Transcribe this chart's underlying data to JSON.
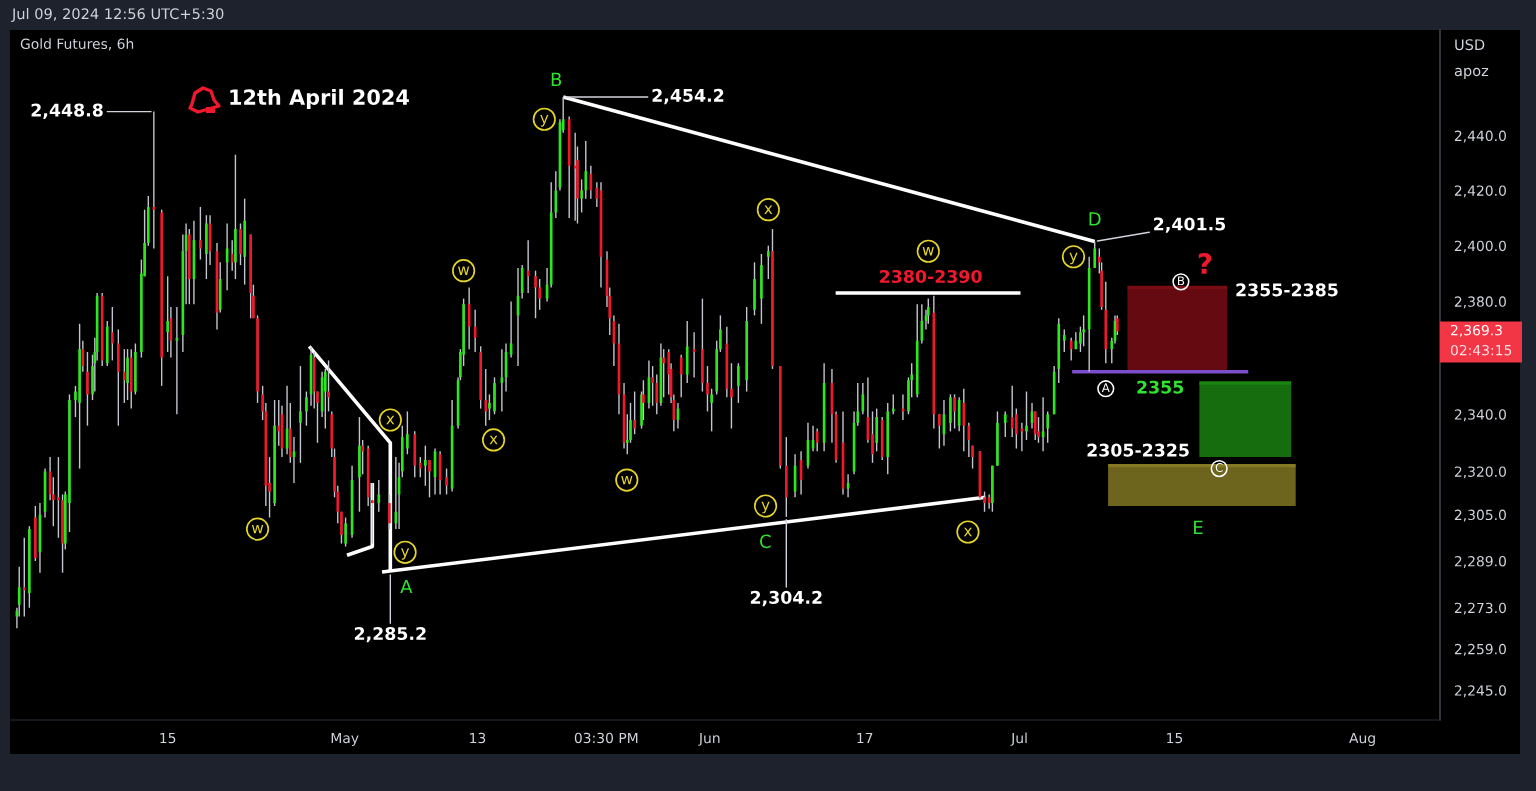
{
  "chart_data": {
    "type": "candlestick",
    "title": "Gold Futures, 6h",
    "x": [
      "2024-04-01T09:00",
      "2024-04-01T14:00",
      "2024-04-02T01:00",
      "2024-04-02T12:00",
      "2024-04-03T01:00",
      "2024-04-03T11:00",
      "2024-04-03T22:00",
      "2024-04-04T09:00",
      "2024-04-04T16:00",
      "2024-04-05T03:00",
      "2024-04-05T12:00",
      "2024-04-05T18:00",
      "2024-04-06T03:00",
      "2024-04-06T16:00",
      "2024-04-07T01:00",
      "2024-04-07T08:00",
      "2024-04-07T18:00",
      "2024-04-08T05:00",
      "2024-04-08T10:00",
      "2024-04-08T15:00",
      "2024-04-09T02:00",
      "2024-04-09T13:00",
      "2024-04-10T00:00",
      "2024-04-10T13:00",
      "2024-04-11T02:00",
      "2024-04-11T09:00",
      "2024-04-11T17:00",
      "2024-04-12T02:00",
      "2024-04-12T15:00",
      "2024-04-12T22:00",
      "2024-04-13T06:00",
      "2024-04-13T18:00",
      "2024-04-14T11:00",
      "2024-04-15T00:00",
      "2024-04-15T07:00",
      "2024-04-15T20:00",
      "2024-04-16T09:00",
      "2024-04-16T16:00",
      "2024-04-16T23:00",
      "2024-04-17T09:00",
      "2024-04-17T23:00",
      "2024-04-18T12:00",
      "2024-04-18T20:00",
      "2024-04-19T11:00",
      "2024-04-19T18:00",
      "2024-04-20T09:00",
      "2024-04-20T20:00",
      "2024-04-21T03:00",
      "2024-04-21T14:00",
      "2024-04-21T23:00",
      "2024-04-22T12:00",
      "2024-04-22T18:00",
      "2024-04-23T03:00",
      "2024-04-23T14:00",
      "2024-04-23T21:00",
      "2024-04-24T05:00",
      "2024-04-24T16:00",
      "2024-04-25T01:00",
      "2024-04-25T08:00",
      "2024-04-25T19:00",
      "2024-04-26T02:00",
      "2024-04-26T10:00",
      "2024-04-27T00:00",
      "2024-04-27T13:00",
      "2024-04-27T23:00",
      "2024-04-28T06:00",
      "2024-04-28T13:00",
      "2024-04-28T23:00",
      "2024-04-29T06:00",
      "2024-04-29T13:00",
      "2024-04-29T20:00",
      "2024-04-30T02:00",
      "2024-04-30T09:00",
      "2024-04-30T17:00",
      "2024-05-01T02:00",
      "2024-05-01T16:00",
      "2024-05-02T08:00",
      "2024-05-02T15:00",
      "2024-05-03T03:00",
      "2024-05-03T12:00",
      "2024-05-04T02:00",
      "2024-05-05T01:00",
      "2024-05-05T15:00",
      "2024-05-05T22:00",
      "2024-05-06T05:00",
      "2024-05-06T16:00",
      "2024-05-07T08:00",
      "2024-05-07T20:00",
      "2024-05-08T07:00",
      "2024-05-08T16:00",
      "2024-05-09T04:00",
      "2024-05-09T15:00",
      "2024-05-10T05:00",
      "2024-05-10T17:00",
      "2024-05-11T06:00",
      "2024-05-11T11:00",
      "2024-05-11T18:00",
      "2024-05-12T06:00",
      "2024-05-12T19:00",
      "2024-05-13T07:00",
      "2024-05-13T18:00",
      "2024-05-14T02:00",
      "2024-05-14T13:00",
      "2024-05-15T05:00",
      "2024-05-15T14:00",
      "2024-05-16T01:00",
      "2024-05-16T16:00",
      "2024-05-17T01:00",
      "2024-05-17T14:00",
      "2024-05-18T06:00",
      "2024-05-18T15:00",
      "2024-05-19T07:00",
      "2024-05-19T16:00",
      "2024-05-20T02:00",
      "2024-05-20T11:00",
      "2024-05-20T18:00",
      "2024-05-21T07:00",
      "2024-05-21T20:00",
      "2024-05-22T01:00",
      "2024-05-22T10:00",
      "2024-05-22T19:00",
      "2024-05-23T06:00",
      "2024-05-23T19:00",
      "2024-05-24T04:00",
      "2024-05-24T17:00",
      "2024-05-24T23:00",
      "2024-05-25T08:00",
      "2024-05-25T19:00",
      "2024-05-26T06:00",
      "2024-05-26T13:00",
      "2024-05-26T20:00",
      "2024-05-27T05:00",
      "2024-05-27T20:00",
      "2024-05-28T00:00",
      "2024-05-28T12:00",
      "2024-05-28T20:00",
      "2024-05-29T05:00",
      "2024-05-29T14:00",
      "2024-05-29T20:00",
      "2024-05-30T07:00",
      "2024-05-30T12:00",
      "2024-05-30T18:00",
      "2024-05-31T03:00",
      "2024-05-31T10:00",
      "2024-05-31T23:00",
      "2024-06-01T14:00",
      "2024-06-02T08:00",
      "2024-06-02T19:00",
      "2024-06-03T04:00",
      "2024-06-03T15:00",
      "2024-06-03T23:00",
      "2024-06-04T13:00",
      "2024-06-04T23:00",
      "2024-06-05T14:00",
      "2024-06-06T08:00",
      "2024-06-07T01:00",
      "2024-06-07T16:00",
      "2024-06-08T07:00",
      "2024-06-08T16:00",
      "2024-06-09T09:00",
      "2024-06-09T22:00",
      "2024-06-10T17:00",
      "2024-06-11T06:00",
      "2024-06-11T21:00",
      "2024-06-12T08:00",
      "2024-06-12T17:00",
      "2024-06-13T08:00",
      "2024-06-14T01:00",
      "2024-06-14T10:00",
      "2024-06-15T01:00",
      "2024-06-15T12:00",
      "2024-06-16T01:00",
      "2024-06-16T09:00",
      "2024-06-16T20:00",
      "2024-06-17T07:00",
      "2024-06-17T17:00",
      "2024-06-18T02:00",
      "2024-06-18T14:00",
      "2024-06-19T02:00",
      "2024-06-19T14:00",
      "2024-06-20T11:00",
      "2024-06-20T23:00",
      "2024-06-21T06:00",
      "2024-06-21T18:00",
      "2024-06-22T04:00",
      "2024-06-22T13:00",
      "2024-06-22T18:00",
      "2024-06-23T06:00",
      "2024-06-23T18:00",
      "2024-06-24T04:00",
      "2024-06-24T18:00",
      "2024-06-25T03:00",
      "2024-06-25T13:00",
      "2024-06-25T23:00",
      "2024-06-26T10:00",
      "2024-06-26T18:00",
      "2024-06-27T10:00",
      "2024-06-27T20:00",
      "2024-06-28T06:00",
      "2024-06-28T13:00",
      "2024-06-29T00:00",
      "2024-06-29T17:00",
      "2024-06-30T08:00",
      "2024-06-30T17:00",
      "2024-07-01T05:00",
      "2024-07-01T15:00",
      "2024-07-02T03:00",
      "2024-07-02T10:00",
      "2024-07-02T17:00",
      "2024-07-03T03:00",
      "2024-07-03T13:00",
      "2024-07-04T03:00",
      "2024-07-04T13:00",
      "2024-07-05T01:00",
      "2024-07-05T16:00",
      "2024-07-06T02:00",
      "2024-07-06T12:00",
      "2024-07-06T19:00",
      "2024-07-07T07:00",
      "2024-07-07T19:00",
      "2024-07-08T05:00",
      "2024-07-08T10:00",
      "2024-07-08T19:00",
      "2024-07-09T08:00",
      "2024-07-09T15:00",
      "2024-07-09T20:00"
    ],
    "ohlc": [
      [
        2270,
        2273,
        2266,
        2272
      ],
      [
        2274,
        2287,
        2270,
        2280
      ],
      [
        2280,
        2297,
        2270,
        2279
      ],
      [
        2278,
        2301,
        2273,
        2300
      ],
      [
        2304,
        2308,
        2289,
        2290
      ],
      [
        2292,
        2309,
        2285,
        2305
      ],
      [
        2306,
        2321,
        2304,
        2320
      ],
      [
        2320,
        2325,
        2310,
        2312
      ],
      [
        2312,
        2318,
        2301,
        2310
      ],
      [
        2311,
        2325,
        2297,
        2310
      ],
      [
        2310,
        2312,
        2285,
        2295
      ],
      [
        2295,
        2313,
        2293,
        2312
      ],
      [
        2309,
        2347,
        2299,
        2345
      ],
      [
        2345,
        2350,
        2339,
        2348
      ],
      [
        2344,
        2372,
        2321,
        2363
      ],
      [
        2363,
        2366,
        2355,
        2357
      ],
      [
        2355,
        2362,
        2336,
        2347
      ],
      [
        2347,
        2361,
        2345,
        2357
      ],
      [
        2358,
        2367,
        2348,
        2362
      ],
      [
        2362,
        2383,
        2359,
        2382
      ],
      [
        2382,
        2383,
        2357,
        2359
      ],
      [
        2358,
        2373,
        2357,
        2371
      ],
      [
        2369,
        2378,
        2359,
        2365
      ],
      [
        2365,
        2370,
        2336,
        2355
      ],
      [
        2355,
        2363,
        2344,
        2352
      ],
      [
        2351,
        2363,
        2345,
        2360
      ],
      [
        2360,
        2363,
        2342,
        2348
      ],
      [
        2348,
        2365,
        2347,
        2362
      ],
      [
        2362,
        2395,
        2360,
        2390
      ],
      [
        2389,
        2413,
        2389,
        2401
      ],
      [
        2401,
        2418,
        2400,
        2414
      ],
      [
        2414,
        2448.8,
        2399,
        2413
      ],
      [
        2412,
        2413,
        2350,
        2360
      ],
      [
        2369,
        2389,
        2362,
        2373
      ],
      [
        2374,
        2378,
        2360,
        2366
      ],
      [
        2366,
        2378,
        2340,
        2367
      ],
      [
        2368,
        2404,
        2362,
        2398
      ],
      [
        2398,
        2408,
        2379,
        2404
      ],
      [
        2404,
        2406,
        2379,
        2388
      ],
      [
        2388,
        2409,
        2379,
        2402
      ],
      [
        2402,
        2414,
        2395,
        2399
      ],
      [
        2397,
        2411,
        2388,
        2408
      ],
      [
        2408,
        2411,
        2393,
        2398
      ],
      [
        2398,
        2401,
        2370,
        2376
      ],
      [
        2377,
        2394,
        2376,
        2388
      ],
      [
        2394,
        2408,
        2384,
        2399
      ],
      [
        2397,
        2402,
        2391,
        2394
      ],
      [
        2394,
        2433,
        2388,
        2406
      ],
      [
        2406,
        2408,
        2393,
        2397
      ],
      [
        2396,
        2417,
        2386,
        2409
      ],
      [
        2404,
        2404,
        2374,
        2383
      ],
      [
        2382,
        2386,
        2374,
        2374
      ],
      [
        2374,
        2375,
        2344,
        2348
      ],
      [
        2347,
        2350,
        2338,
        2341
      ],
      [
        2341,
        2344,
        2308,
        2315
      ],
      [
        2316,
        2325,
        2304,
        2313
      ],
      [
        2309,
        2345,
        2308,
        2336
      ],
      [
        2336,
        2345,
        2329,
        2334
      ],
      [
        2340,
        2343,
        2325,
        2328
      ],
      [
        2328,
        2350,
        2326,
        2335
      ],
      [
        2335,
        2344,
        2323,
        2325
      ],
      [
        2325,
        2332,
        2316,
        2327
      ],
      [
        2337,
        2357,
        2323,
        2341
      ],
      [
        2341,
        2348,
        2336,
        2346
      ],
      [
        2347,
        2364,
        2343,
        2361
      ],
      [
        2360,
        2362,
        2342,
        2348
      ],
      [
        2348,
        2348,
        2330,
        2344
      ],
      [
        2341,
        2355,
        2339,
        2353
      ],
      [
        2348,
        2356,
        2335,
        2355
      ],
      [
        2348,
        2359,
        2341,
        2346
      ],
      [
        2340,
        2341,
        2325,
        2328
      ],
      [
        2325,
        2328,
        2311,
        2313
      ],
      [
        2313,
        2315,
        2302,
        2306
      ],
      [
        2306,
        2306,
        2295,
        2298
      ],
      [
        2295,
        2304,
        2294,
        2302
      ],
      [
        2298,
        2322,
        2297,
        2317
      ],
      [
        2318,
        2339,
        2306,
        2329
      ],
      [
        2329,
        2331,
        2319,
        2327
      ],
      [
        2328,
        2329,
        2308,
        2311
      ],
      [
        2310,
        2316,
        2295,
        2309
      ],
      [
        2309,
        2317,
        2306,
        2312
      ],
      [
        2309,
        2312,
        2300,
        2302
      ],
      [
        2302,
        2325,
        2300,
        2306
      ],
      [
        2312,
        2323,
        2300,
        2318
      ],
      [
        2320,
        2336,
        2318,
        2332
      ],
      [
        2328,
        2341,
        2326,
        2333
      ],
      [
        2333,
        2334,
        2318,
        2322
      ],
      [
        2323,
        2325,
        2318,
        2321
      ],
      [
        2322,
        2329,
        2315,
        2324
      ],
      [
        2324,
        2324,
        2311,
        2320
      ],
      [
        2318,
        2328,
        2312,
        2327
      ],
      [
        2326,
        2327,
        2312,
        2317
      ],
      [
        2318,
        2321,
        2312,
        2315
      ],
      [
        2314,
        2345,
        2313,
        2336
      ],
      [
        2336,
        2353,
        2335,
        2352
      ],
      [
        2353,
        2363,
        2352,
        2362
      ],
      [
        2361,
        2381,
        2357,
        2379
      ],
      [
        2379,
        2385,
        2363,
        2371
      ],
      [
        2371,
        2377,
        2362,
        2367
      ],
      [
        2362,
        2364,
        2342,
        2345
      ],
      [
        2345,
        2356,
        2336,
        2341
      ],
      [
        2342,
        2347,
        2338,
        2344
      ],
      [
        2341,
        2353,
        2340,
        2351
      ],
      [
        2351,
        2363,
        2341,
        2353
      ],
      [
        2353,
        2365,
        2348,
        2362
      ],
      [
        2361,
        2380,
        2360,
        2365
      ],
      [
        2375,
        2392,
        2357,
        2382
      ],
      [
        2383,
        2393,
        2381,
        2392
      ],
      [
        2391,
        2402,
        2383,
        2389
      ],
      [
        2389,
        2391,
        2374,
        2385
      ],
      [
        2385,
        2388,
        2377,
        2381
      ],
      [
        2381,
        2392,
        2380,
        2386
      ],
      [
        2386,
        2423,
        2385,
        2412
      ],
      [
        2412,
        2427,
        2410,
        2420
      ],
      [
        2421,
        2446,
        2420,
        2445
      ],
      [
        2442,
        2454.2,
        2441,
        2446
      ],
      [
        2446,
        2447,
        2410,
        2429
      ],
      [
        2429,
        2441,
        2409,
        2428
      ],
      [
        2431,
        2436,
        2408,
        2417
      ],
      [
        2417,
        2424,
        2412,
        2420
      ],
      [
        2420,
        2438,
        2417,
        2427
      ],
      [
        2426,
        2429,
        2417,
        2420
      ],
      [
        2421,
        2423,
        2414,
        2417
      ],
      [
        2420,
        2423,
        2385,
        2396
      ],
      [
        2395,
        2398,
        2378,
        2382
      ],
      [
        2382,
        2385,
        2368,
        2374
      ],
      [
        2373,
        2375,
        2357,
        2365
      ],
      [
        2365,
        2372,
        2340,
        2347
      ],
      [
        2347,
        2351,
        2328,
        2330
      ],
      [
        2330,
        2340,
        2326,
        2331
      ],
      [
        2331,
        2344,
        2330,
        2338
      ],
      [
        2338,
        2348,
        2333,
        2335
      ],
      [
        2336,
        2348,
        2335,
        2347
      ],
      [
        2347,
        2352,
        2338,
        2344
      ],
      [
        2344,
        2359,
        2342,
        2353
      ],
      [
        2353,
        2357,
        2343,
        2351
      ],
      [
        2351,
        2354,
        2340,
        2344
      ],
      [
        2344,
        2365,
        2343,
        2360
      ],
      [
        2360,
        2363,
        2346,
        2358
      ],
      [
        2362,
        2363,
        2347,
        2354
      ],
      [
        2356,
        2358,
        2344,
        2346
      ],
      [
        2345,
        2347,
        2334,
        2338
      ],
      [
        2338,
        2344,
        2335,
        2342
      ],
      [
        2360,
        2361,
        2346,
        2354
      ],
      [
        2354,
        2373,
        2351,
        2364
      ],
      [
        2363,
        2369,
        2353,
        2362
      ],
      [
        2363,
        2381,
        2348,
        2351
      ],
      [
        2351,
        2357,
        2341,
        2347
      ],
      [
        2344,
        2349,
        2334,
        2347
      ],
      [
        2348,
        2366,
        2347,
        2363
      ],
      [
        2363,
        2375,
        2362,
        2370
      ],
      [
        2365,
        2371,
        2346,
        2349
      ],
      [
        2349,
        2358,
        2335,
        2346
      ],
      [
        2350,
        2358,
        2344,
        2357
      ],
      [
        2352,
        2378,
        2348,
        2373
      ],
      [
        2377,
        2394,
        2375,
        2388
      ],
      [
        2381,
        2397,
        2372,
        2393
      ],
      [
        2396,
        2400,
        2388,
        2398
      ],
      [
        2398,
        2406,
        2356,
        2357
      ],
      [
        2357,
        2357,
        2321,
        2322
      ],
      [
        2322,
        2332,
        2304.2,
        2311
      ],
      [
        2313,
        2326,
        2311,
        2322
      ],
      [
        2324,
        2327,
        2312,
        2317
      ],
      [
        2322,
        2337,
        2321,
        2331
      ],
      [
        2328,
        2336,
        2327,
        2331
      ],
      [
        2334,
        2335,
        2327,
        2330
      ],
      [
        2330,
        2358,
        2327,
        2351
      ],
      [
        2351,
        2356,
        2330,
        2340
      ],
      [
        2340,
        2341,
        2323,
        2324
      ],
      [
        2330,
        2341,
        2312,
        2314
      ],
      [
        2314,
        2319,
        2311,
        2316
      ],
      [
        2320,
        2341,
        2319,
        2337
      ],
      [
        2337,
        2351,
        2336,
        2341
      ],
      [
        2341,
        2351,
        2340,
        2347
      ],
      [
        2339,
        2353,
        2330,
        2331
      ],
      [
        2333,
        2341,
        2323,
        2326
      ],
      [
        2330,
        2342,
        2327,
        2339
      ],
      [
        2338,
        2339,
        2324,
        2325
      ],
      [
        2325,
        2344,
        2319,
        2341
      ],
      [
        2341,
        2347,
        2340,
        2342
      ],
      [
        2342,
        2347,
        2338,
        2341
      ],
      [
        2341,
        2353,
        2340,
        2352
      ],
      [
        2352,
        2358,
        2346,
        2354
      ],
      [
        2347,
        2379,
        2346,
        2366
      ],
      [
        2366,
        2379,
        2365,
        2373
      ],
      [
        2373,
        2377,
        2370,
        2375
      ],
      [
        2375,
        2381,
        2372,
        2378
      ],
      [
        2376,
        2382,
        2335,
        2340
      ],
      [
        2340,
        2340,
        2328,
        2336
      ],
      [
        2333,
        2345,
        2329,
        2340
      ],
      [
        2337,
        2347,
        2334,
        2346
      ],
      [
        2346,
        2347,
        2335,
        2341
      ],
      [
        2336,
        2346,
        2334,
        2345
      ],
      [
        2344,
        2349,
        2327,
        2336
      ],
      [
        2336,
        2337,
        2325,
        2331
      ],
      [
        2329,
        2329,
        2321,
        2325
      ],
      [
        2327,
        2327,
        2310,
        2311
      ],
      [
        2311,
        2313,
        2306,
        2309
      ],
      [
        2311,
        2312,
        2307,
        2309
      ],
      [
        2309,
        2322,
        2306,
        2322
      ],
      [
        2322,
        2341,
        2322,
        2337
      ],
      [
        2337,
        2341,
        2332,
        2340
      ],
      [
        2339,
        2350,
        2332,
        2335
      ],
      [
        2340,
        2342,
        2328,
        2333
      ],
      [
        2335,
        2337,
        2327,
        2334
      ],
      [
        2334,
        2348,
        2331,
        2336
      ],
      [
        2337,
        2344,
        2335,
        2341
      ],
      [
        2341,
        2341,
        2331,
        2333
      ],
      [
        2334,
        2339,
        2330,
        2332
      ],
      [
        2332,
        2346,
        2327,
        2334
      ],
      [
        2335,
        2341,
        2330,
        2340
      ],
      [
        2340,
        2357,
        2340,
        2355
      ],
      [
        2356,
        2374,
        2351,
        2372
      ],
      [
        2366,
        2370,
        2362,
        2368
      ],
      [
        2366,
        2367,
        2359,
        2363
      ],
      [
        2363,
        2369,
        2363,
        2366
      ],
      [
        2365,
        2371,
        2362,
        2369
      ],
      [
        2369,
        2375,
        2364,
        2370
      ],
      [
        2370,
        2396,
        2355,
        2392
      ],
      [
        2392,
        2401.5,
        2392,
        2399
      ],
      [
        2396,
        2399,
        2390,
        2394
      ],
      [
        2391,
        2394,
        2377,
        2378
      ],
      [
        2377,
        2387,
        2358,
        2363
      ],
      [
        2363,
        2367,
        2358,
        2366
      ],
      [
        2366,
        2375,
        2365,
        2373
      ],
      [
        2374,
        2375,
        2368,
        2369.3
      ]
    ],
    "colors": [
      "#2ee61f",
      "#2ee61f",
      "#f0182c",
      "#2ee61f",
      "#f0182c",
      "#2ee61f",
      "#2ee61f",
      "#f0182c",
      "#f0182c",
      "#f0182c",
      "#f0182c",
      "#2ee61f",
      "#2ee61f",
      "#2ee61f",
      "#2ee61f",
      "#f0182c",
      "#f0182c",
      "#2ee61f",
      "#2ee61f",
      "#2ee61f",
      "#f0182c",
      "#2ee61f",
      "#f0182c",
      "#f0182c",
      "#f0182c",
      "#2ee61f",
      "#f0182c",
      "#2ee61f",
      "#2ee61f",
      "#2ee61f",
      "#2ee61f",
      "#f0182c",
      "#f0182c",
      "#2ee61f",
      "#f0182c",
      "#2ee61f",
      "#2ee61f",
      "#2ee61f",
      "#f0182c",
      "#2ee61f",
      "#f0182c",
      "#2ee61f",
      "#f0182c",
      "#f0182c",
      "#2ee61f",
      "#2ee61f",
      "#f0182c",
      "#2ee61f",
      "#f0182c",
      "#2ee61f",
      "#f0182c",
      "#f0182c",
      "#f0182c",
      "#f0182c",
      "#f0182c",
      "#f0182c",
      "#2ee61f",
      "#f0182c",
      "#f0182c",
      "#2ee61f",
      "#f0182c",
      "#2ee61f",
      "#2ee61f",
      "#2ee61f",
      "#2ee61f",
      "#f0182c",
      "#f0182c",
      "#2ee61f",
      "#2ee61f",
      "#f0182c",
      "#f0182c",
      "#f0182c",
      "#f0182c",
      "#f0182c",
      "#2ee61f",
      "#2ee61f",
      "#2ee61f",
      "#f0182c",
      "#f0182c",
      "#f0182c",
      "#2ee61f",
      "#f0182c",
      "#2ee61f",
      "#2ee61f",
      "#2ee61f",
      "#2ee61f",
      "#f0182c",
      "#f0182c",
      "#2ee61f",
      "#f0182c",
      "#2ee61f",
      "#f0182c",
      "#f0182c",
      "#2ee61f",
      "#2ee61f",
      "#2ee61f",
      "#2ee61f",
      "#f0182c",
      "#f0182c",
      "#f0182c",
      "#f0182c",
      "#2ee61f",
      "#2ee61f",
      "#2ee61f",
      "#2ee61f",
      "#2ee61f",
      "#2ee61f",
      "#2ee61f",
      "#f0182c",
      "#f0182c",
      "#f0182c",
      "#2ee61f",
      "#2ee61f",
      "#2ee61f",
      "#2ee61f",
      "#2ee61f",
      "#f0182c",
      "#f0182c",
      "#f0182c",
      "#2ee61f",
      "#2ee61f",
      "#f0182c",
      "#f0182c",
      "#f0182c",
      "#f0182c",
      "#f0182c",
      "#f0182c",
      "#f0182c",
      "#f0182c",
      "#2ee61f",
      "#2ee61f",
      "#f0182c",
      "#2ee61f",
      "#f0182c",
      "#2ee61f",
      "#f0182c",
      "#f0182c",
      "#2ee61f",
      "#f0182c",
      "#f0182c",
      "#f0182c",
      "#f0182c",
      "#2ee61f",
      "#f0182c",
      "#2ee61f",
      "#f0182c",
      "#f0182c",
      "#f0182c",
      "#2ee61f",
      "#2ee61f",
      "#2ee61f",
      "#f0182c",
      "#f0182c",
      "#2ee61f",
      "#2ee61f",
      "#2ee61f",
      "#2ee61f",
      "#2ee61f",
      "#f0182c",
      "#f0182c",
      "#f0182c",
      "#2ee61f",
      "#f0182c",
      "#2ee61f",
      "#2ee61f",
      "#f0182c",
      "#2ee61f",
      "#f0182c",
      "#f0182c",
      "#f0182c",
      "#2ee61f",
      "#2ee61f",
      "#2ee61f",
      "#2ee61f",
      "#f0182c",
      "#f0182c",
      "#2ee61f",
      "#f0182c",
      "#2ee61f",
      "#2ee61f",
      "#f0182c",
      "#2ee61f",
      "#2ee61f",
      "#2ee61f",
      "#2ee61f",
      "#2ee61f",
      "#2ee61f",
      "#f0182c",
      "#f0182c",
      "#2ee61f",
      "#2ee61f",
      "#f0182c",
      "#2ee61f",
      "#f0182c",
      "#f0182c",
      "#f0182c",
      "#f0182c",
      "#f0182c",
      "#f0182c",
      "#2ee61f",
      "#2ee61f",
      "#2ee61f",
      "#f0182c",
      "#f0182c",
      "#f0182c",
      "#2ee61f",
      "#2ee61f",
      "#f0182c",
      "#f0182c",
      "#2ee61f",
      "#2ee61f",
      "#2ee61f",
      "#2ee61f",
      "#2ee61f",
      "#f0182c",
      "#2ee61f",
      "#2ee61f",
      "#2ee61f",
      "#2ee61f",
      "#2ee61f",
      "#f0182c",
      "#f0182c",
      "#f0182c",
      "#2ee61f",
      "#2ee61f",
      "#f0182c"
    ],
    "xlim": [
      "2024-03-31T18:00",
      "2024-08-08T00:00"
    ],
    "xticks": [
      {
        "value": "2024-04-15",
        "label": "15"
      },
      {
        "value": "2024-05-01",
        "label": "May"
      },
      {
        "value": "2024-05-13",
        "label": "13"
      },
      {
        "value": "2024-05-24T15:30",
        "label": "03:30 PM"
      },
      {
        "value": "2024-06-03",
        "label": "Jun"
      },
      {
        "value": "2024-06-17",
        "label": "17"
      },
      {
        "value": "2024-07-01",
        "label": "Jul"
      },
      {
        "value": "2024-07-15",
        "label": "15"
      },
      {
        "value": "2024-08-01",
        "label": "Aug"
      }
    ],
    "ylim": [
      2235,
      2479
    ],
    "log": true,
    "yticks": [
      {
        "value": 2245,
        "label": "2,245.0"
      },
      {
        "value": 2259,
        "label": "2,259.0"
      },
      {
        "value": 2273,
        "label": "2,273.0"
      },
      {
        "value": 2289,
        "label": "2,289.0"
      },
      {
        "value": 2305,
        "label": "2,305.0"
      },
      {
        "value": 2320,
        "label": "2,320.0"
      },
      {
        "value": 2340,
        "label": "2,340.0"
      },
      {
        "value": 2380,
        "label": "2,380.0"
      },
      {
        "value": 2400,
        "label": "2,400.0"
      },
      {
        "value": 2420,
        "label": "2,420.0"
      },
      {
        "value": 2440,
        "label": "2,440.0"
      }
    ],
    "series": [
      {
        "type": "line",
        "x": [
          "2024-07-10T18:00",
          "2024-07-19T18:00"
        ],
        "values": [
          2385,
          2385
        ],
        "lower": [
          2355,
          2355
        ],
        "upper": [
          2385,
          2385
        ],
        "color": "#7a0c13"
      },
      {
        "type": "line",
        "x": [
          "2024-07-17T06:00",
          "2024-07-25T13:00"
        ],
        "values": [
          2351,
          2351
        ],
        "lower": [
          2325,
          2325
        ],
        "upper": [
          2351,
          2351
        ],
        "color": "#1a8510"
      },
      {
        "type": "line",
        "x": [
          "2024-07-09T00:00",
          "2024-07-25T23:00"
        ],
        "values": [
          2322,
          2322
        ],
        "lower": [
          2308,
          2308
        ],
        "upper": [
          2322,
          2322
        ],
        "color": "#857a23"
      },
      {
        "type": "line",
        "x": [
          "2024-05-20T18:00",
          "2024-07-07T19:00"
        ],
        "values": [
          2454.2,
          2401.5
        ],
        "color": "#ffffff"
      },
      {
        "type": "line",
        "x": [
          "2024-05-04T09:00",
          "2024-06-27T22:00"
        ],
        "values": [
          2285.2,
          2311
        ],
        "color": "#ffffff"
      },
      {
        "type": "line",
        "x": [
          "2024-04-27T19:00",
          "2024-05-05T03:00",
          "2024-05-05T03:00"
        ],
        "values": [
          2364,
          2330,
          2285.2
        ],
        "color": "#ffffff"
      },
      {
        "type": "line",
        "x": [
          "2024-05-01T05:00",
          "2024-05-03T12:00",
          "2024-05-03T12:00"
        ],
        "values": [
          2291,
          2294,
          2316
        ],
        "color": "#ffffff"
      },
      {
        "type": "line",
        "x": [
          "2024-06-14T09:00",
          "2024-07-01T02:00"
        ],
        "values": [
          2383,
          2383
        ],
        "color": "#ffffff"
      },
      {
        "type": "line",
        "x": [
          "2024-07-05T18:00",
          "2024-07-21T16:00"
        ],
        "values": [
          2355,
          2355
        ],
        "color": "#7c4dcc"
      }
    ],
    "annotations": [
      "Jul 09, 2024 12:56 UTC+5:30",
      "USD",
      "apoz",
      "12th April 2024",
      {
        "text": "2,448.8",
        "x": "2024-04-13T18:00",
        "y": 2448.8
      },
      {
        "text": "2,454.2",
        "x": "2024-05-20T18:00",
        "y": 2454.2
      },
      {
        "text": "2,401.5",
        "x": "2024-07-07T19:00",
        "y": 2401.5
      },
      {
        "text": "2,285.2",
        "x": "2024-05-05T03:00",
        "y": 2285.2
      },
      {
        "text": "2,304.2",
        "x": "2024-06-09T22:00",
        "y": 2304.2
      },
      {
        "text": "A",
        "x": "2024-05-05T03:00",
        "y": 2285.2
      },
      {
        "text": "B",
        "x": "2024-05-20T18:00",
        "y": 2454.2
      },
      {
        "text": "C",
        "x": "2024-06-09T22:00",
        "y": 2304.2
      },
      {
        "text": "D",
        "x": "2024-07-07T19:00",
        "y": 2401.5
      },
      "E",
      {
        "text": "w",
        "x": "2024-04-23T03:00",
        "y": 2300
      },
      {
        "text": "x",
        "x": "2024-05-05T03:00",
        "y": 2338
      },
      {
        "text": "y",
        "x": "2024-05-06T11:00",
        "y": 2292
      },
      {
        "text": "w",
        "x": "2024-05-11T18:00",
        "y": 2391
      },
      {
        "text": "x",
        "x": "2024-05-14T11:00",
        "y": 2331
      },
      {
        "text": "y",
        "x": "2024-05-19T01:00",
        "y": 2446
      },
      {
        "text": "w",
        "x": "2024-05-26T12:00",
        "y": 2317
      },
      {
        "text": "x",
        "x": "2024-06-08T07:00",
        "y": 2413
      },
      {
        "text": "y",
        "x": "2024-06-08T01:00",
        "y": 2308
      },
      {
        "text": "w",
        "x": "2024-06-22T18:00",
        "y": 2398
      },
      {
        "text": "x",
        "x": "2024-06-26T08:00",
        "y": 2299
      },
      {
        "text": "y",
        "x": "2024-07-05T21:00",
        "y": 2396
      },
      {
        "text": "A",
        "x": "2024-07-08T19:00",
        "y": 2349
      },
      {
        "text": "B",
        "x": "2024-07-15T14:00",
        "y": 2387
      },
      {
        "text": "C",
        "x": "2024-07-19T01:00",
        "y": 2321
      },
      "?",
      {
        "text": "2380-2390",
        "x": "2024-06-22T23:00",
        "y": 2383
      },
      {
        "text": "2355-2385",
        "x": "2024-07-19T18:00",
        "y": 2385
      },
      {
        "text": "2355",
        "x": "2024-07-13T17:00",
        "y": 2355
      },
      {
        "text": "2305-2325",
        "x": "2024-07-09T00:00",
        "y": 2322
      },
      "2,369.3",
      "02:43:15"
    ]
  }
}
